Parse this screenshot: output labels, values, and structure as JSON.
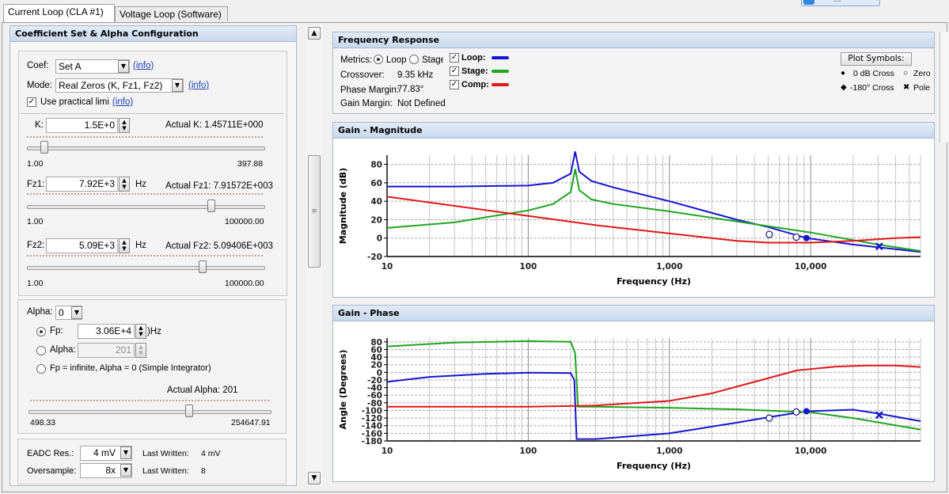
{
  "tabs": [
    {
      "label": "Current Loop (CLA #1)",
      "active": true
    },
    {
      "label": "Voltage Loop (Software)",
      "active": false
    }
  ],
  "top_button_partial": "...",
  "coef_panel": {
    "title": "Coefficient Set & Alpha Configuration",
    "coef_label": "Coef:",
    "coef_value": "Set A",
    "mode_label": "Mode:",
    "mode_value": "Real Zeros (K, Fz1, Fz2)",
    "info": "(info)",
    "practical_label": "Use practical limi",
    "practical_checked": true,
    "k": {
      "label": "K:",
      "value": "1.5E+0",
      "actual": "Actual K: 1.45711E+000",
      "min": "1.00",
      "max": "397.88",
      "level": 0.07
    },
    "fz1": {
      "label": "Fz1:",
      "value": "7.92E+3",
      "unit": "Hz",
      "actual": "Actual Fz1: 7.91572E+003",
      "min": "1.00",
      "max": "100000.00",
      "level": 0.78
    },
    "fz2": {
      "label": "Fz2:",
      "value": "5.09E+3",
      "unit": "Hz",
      "actual": "Actual Fz2: 5.09406E+003",
      "min": "1.00",
      "max": "100000.00",
      "level": 0.74
    },
    "alpha_label": "Alpha:",
    "alpha_value": "0",
    "fp_label": "Fp:",
    "fp_value": "3.06E+4",
    "fp_unit": ")Hz",
    "alpha_radio_label": "Alpha:",
    "alpha_radio_value": "201",
    "integrator_label": "Fp = infinite, Alpha = 0 (Simple Integrator)",
    "actual_alpha": "Actual Alpha: 201",
    "alpha_min": "498.33",
    "alpha_max": "254647.91",
    "alpha_level": 0.66,
    "eadc_label": "EADC Res.:",
    "eadc_value": "4 mV",
    "eadc_last_label": "Last Written:",
    "eadc_last_value": "4 mV",
    "oversample_label": "Oversample:",
    "oversample_value": "8x",
    "oversample_last_label": "Last Written:",
    "oversample_last_value": "8"
  },
  "freq_response": {
    "title": "Frequency Response",
    "metrics_label": "Metrics:",
    "loop_radio": "Loop",
    "stage_radio": "Stage",
    "crossover_label": "Crossover:",
    "crossover_value": "9.35 kHz",
    "phase_margin_label": "Phase Margin:",
    "phase_margin_value": "77.83°",
    "gain_margin_label": "Gain Margin:",
    "gain_margin_value": "Not Defined",
    "legend": [
      {
        "label": "Loop:",
        "color": "#1515d0"
      },
      {
        "label": "Stage:",
        "color": "#1fa51f"
      },
      {
        "label": "Comp:",
        "color": "#e01818"
      }
    ],
    "plot_symbols_button": "Plot Symbols:",
    "symbols": [
      {
        "glyph": "●",
        "label": "0 dB Cross"
      },
      {
        "glyph": "○",
        "label": "Zero"
      },
      {
        "glyph": "◆",
        "label": "-180° Cross"
      },
      {
        "glyph": "✖",
        "label": "Pole"
      }
    ]
  },
  "magnitude_panel": {
    "title": "Gain - Magnitude"
  },
  "phase_panel": {
    "title": "Gain - Phase"
  },
  "chart_data": [
    {
      "type": "line",
      "title": "Gain - Magnitude",
      "xlabel": "Frequency (Hz)",
      "ylabel": "Magnitude (dB)",
      "xscale": "log",
      "xlim": [
        10,
        60000
      ],
      "ylim": [
        -20,
        90
      ],
      "xticks": [
        10,
        100,
        1000,
        10000
      ],
      "xtick_labels": [
        "10",
        "100",
        "1,000",
        "10,000"
      ],
      "yticks": [
        -20,
        0,
        20,
        40,
        60,
        80
      ],
      "grid": true,
      "series": [
        {
          "name": "Loop",
          "color": "#1515d0",
          "x": [
            10,
            30,
            100,
            150,
            200,
            215,
            230,
            280,
            400,
            1000,
            3000,
            5000,
            9350,
            20000,
            60000
          ],
          "y": [
            56,
            56,
            57,
            60,
            70,
            94,
            72,
            62,
            55,
            40,
            20,
            12,
            0,
            -7,
            -15
          ]
        },
        {
          "name": "Stage",
          "color": "#1fa51f",
          "x": [
            10,
            30,
            100,
            150,
            200,
            215,
            230,
            280,
            400,
            1000,
            3000,
            10000,
            30000,
            60000
          ],
          "y": [
            11,
            17,
            30,
            37,
            50,
            75,
            52,
            42,
            37,
            29,
            18,
            6,
            -7,
            -14
          ]
        },
        {
          "name": "Comp",
          "color": "#e01818",
          "x": [
            10,
            30,
            100,
            300,
            1000,
            3000,
            5000,
            10000,
            20000,
            40000,
            60000
          ],
          "y": [
            45,
            35,
            24,
            14,
            5,
            -3,
            -5,
            -5,
            -3,
            0,
            1
          ]
        }
      ],
      "markers": [
        {
          "symbol": "Zero",
          "x": 5094,
          "y": 4
        },
        {
          "symbol": "Zero",
          "x": 7916,
          "y": 1
        },
        {
          "symbol": "0 dB Cross",
          "x": 9350,
          "y": 0
        },
        {
          "symbol": "Pole",
          "x": 30600,
          "y": -9
        }
      ]
    },
    {
      "type": "line",
      "title": "Gain - Phase",
      "xlabel": "Frequency (Hz)",
      "ylabel": "Angle (Degrees)",
      "xscale": "log",
      "xlim": [
        10,
        60000
      ],
      "ylim": [
        -180,
        90
      ],
      "xticks": [
        10,
        100,
        1000,
        10000
      ],
      "xtick_labels": [
        "10",
        "100",
        "1,000",
        "10,000"
      ],
      "yticks": [
        -180,
        -160,
        -140,
        -120,
        -100,
        -80,
        -60,
        -40,
        -20,
        0,
        20,
        40,
        60,
        80
      ],
      "grid": true,
      "series": [
        {
          "name": "Loop",
          "color": "#1515d0",
          "x": [
            10,
            20,
            50,
            100,
            200,
            212,
            220,
            300,
            1000,
            3000,
            5000,
            8000,
            10000,
            20000,
            30000,
            60000
          ],
          "y": [
            -25,
            -12,
            -4,
            -1,
            -2,
            -20,
            -175,
            -175,
            -160,
            -132,
            -118,
            -106,
            -102,
            -98,
            -108,
            -128
          ]
        },
        {
          "name": "Stage",
          "color": "#1fa51f",
          "x": [
            10,
            30,
            100,
            200,
            215,
            225,
            300,
            1000,
            3000,
            10000,
            20000,
            60000
          ],
          "y": [
            68,
            78,
            82,
            80,
            50,
            -90,
            -90,
            -93,
            -97,
            -105,
            -120,
            -150
          ]
        },
        {
          "name": "Comp",
          "color": "#e01818",
          "x": [
            10,
            100,
            300,
            1000,
            2000,
            4000,
            8000,
            15000,
            25000,
            40000,
            60000
          ],
          "y": [
            -90,
            -90,
            -87,
            -75,
            -55,
            -25,
            5,
            15,
            18,
            18,
            14
          ]
        }
      ],
      "markers": [
        {
          "symbol": "Zero",
          "x": 5094,
          "y": -120
        },
        {
          "symbol": "Zero",
          "x": 7916,
          "y": -104
        },
        {
          "symbol": "0 dB Cross",
          "x": 9350,
          "y": -102
        },
        {
          "symbol": "Pole",
          "x": 30600,
          "y": -112
        }
      ]
    }
  ]
}
